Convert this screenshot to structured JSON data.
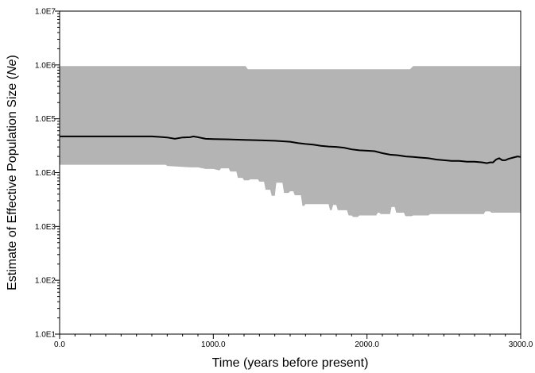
{
  "chart_data": {
    "type": "area",
    "xlabel": "Time (years before present)",
    "ylabel_prefix": "Estimate of Effective Population Size (",
    "ylabel_italic": "Ne",
    "ylabel_suffix": ")",
    "x_scale": "linear",
    "y_scale": "log",
    "xlim": [
      0,
      3000
    ],
    "ylim": [
      10,
      10000000
    ],
    "x_ticks": [
      {
        "value": 0,
        "label": "0.0"
      },
      {
        "value": 1000,
        "label": "1000.0"
      },
      {
        "value": 2000,
        "label": "2000.0"
      },
      {
        "value": 3000,
        "label": "3000.0"
      }
    ],
    "y_ticks": [
      {
        "value": 10,
        "label": "1.0E1"
      },
      {
        "value": 100,
        "label": "1.0E2"
      },
      {
        "value": 1000,
        "label": "1.0E3"
      },
      {
        "value": 10000,
        "label": "1.0E4"
      },
      {
        "value": 100000,
        "label": "1.0E5"
      },
      {
        "value": 1000000,
        "label": "1.0E6"
      },
      {
        "value": 10000000,
        "label": "1.0E7"
      }
    ],
    "colors": {
      "band": "#b4b4b4",
      "median": "#000000",
      "axis": "#000000"
    },
    "upper_bound": {
      "x": [
        0,
        1210,
        1225,
        2280,
        2300,
        3000
      ],
      "y": [
        950000,
        950000,
        830000,
        830000,
        950000,
        950000
      ]
    },
    "lower_bound": {
      "x": [
        0,
        690,
        700,
        850,
        900,
        950,
        1000,
        1040,
        1050,
        1100,
        1110,
        1150,
        1160,
        1190,
        1200,
        1230,
        1240,
        1290,
        1300,
        1330,
        1340,
        1370,
        1380,
        1400,
        1410,
        1450,
        1460,
        1490,
        1500,
        1520,
        1530,
        1570,
        1580,
        1590,
        1600,
        1750,
        1760,
        1770,
        1780,
        1800,
        1810,
        1870,
        1880,
        1900,
        1910,
        1940,
        1950,
        2060,
        2070,
        2080,
        2090,
        2150,
        2160,
        2180,
        2190,
        2240,
        2250,
        2290,
        2300,
        2400,
        2410,
        2760,
        2770,
        2800,
        2810,
        3000
      ],
      "y": [
        14000,
        14000,
        13300,
        12500,
        12500,
        11700,
        11700,
        11000,
        12000,
        12000,
        10500,
        10500,
        8000,
        8000,
        7200,
        7200,
        7500,
        7500,
        6800,
        6800,
        4800,
        4800,
        3700,
        3700,
        6500,
        6500,
        4200,
        4200,
        4500,
        4500,
        3800,
        3800,
        2400,
        2400,
        2600,
        2600,
        2000,
        2000,
        2500,
        2500,
        2000,
        2000,
        1600,
        1600,
        1500,
        1500,
        1600,
        1600,
        1800,
        1800,
        1700,
        1700,
        2300,
        2300,
        1800,
        1800,
        1550,
        1550,
        1600,
        1600,
        1700,
        1700,
        1900,
        1900,
        1800,
        1800
      ]
    },
    "median": {
      "x": [
        0,
        600,
        650,
        700,
        750,
        800,
        850,
        870,
        900,
        950,
        1000,
        1100,
        1200,
        1300,
        1400,
        1500,
        1550,
        1600,
        1650,
        1700,
        1750,
        1800,
        1850,
        1900,
        1950,
        2000,
        2050,
        2100,
        2150,
        2200,
        2250,
        2300,
        2350,
        2400,
        2450,
        2500,
        2550,
        2600,
        2650,
        2700,
        2750,
        2780,
        2800,
        2820,
        2840,
        2860,
        2880,
        2900,
        2920,
        2950,
        2980,
        3000
      ],
      "y": [
        47000,
        47000,
        46000,
        45000,
        42500,
        45000,
        45500,
        47000,
        45500,
        42500,
        42000,
        41500,
        40500,
        40000,
        39000,
        37500,
        35500,
        34000,
        33000,
        31500,
        30500,
        30000,
        29000,
        27000,
        26000,
        25500,
        25000,
        23000,
        21500,
        21000,
        20000,
        19500,
        19000,
        18500,
        17500,
        17000,
        16500,
        16500,
        16000,
        16000,
        15500,
        15000,
        15500,
        15500,
        17500,
        18500,
        17000,
        17000,
        18000,
        19000,
        20000,
        19500
      ]
    }
  }
}
